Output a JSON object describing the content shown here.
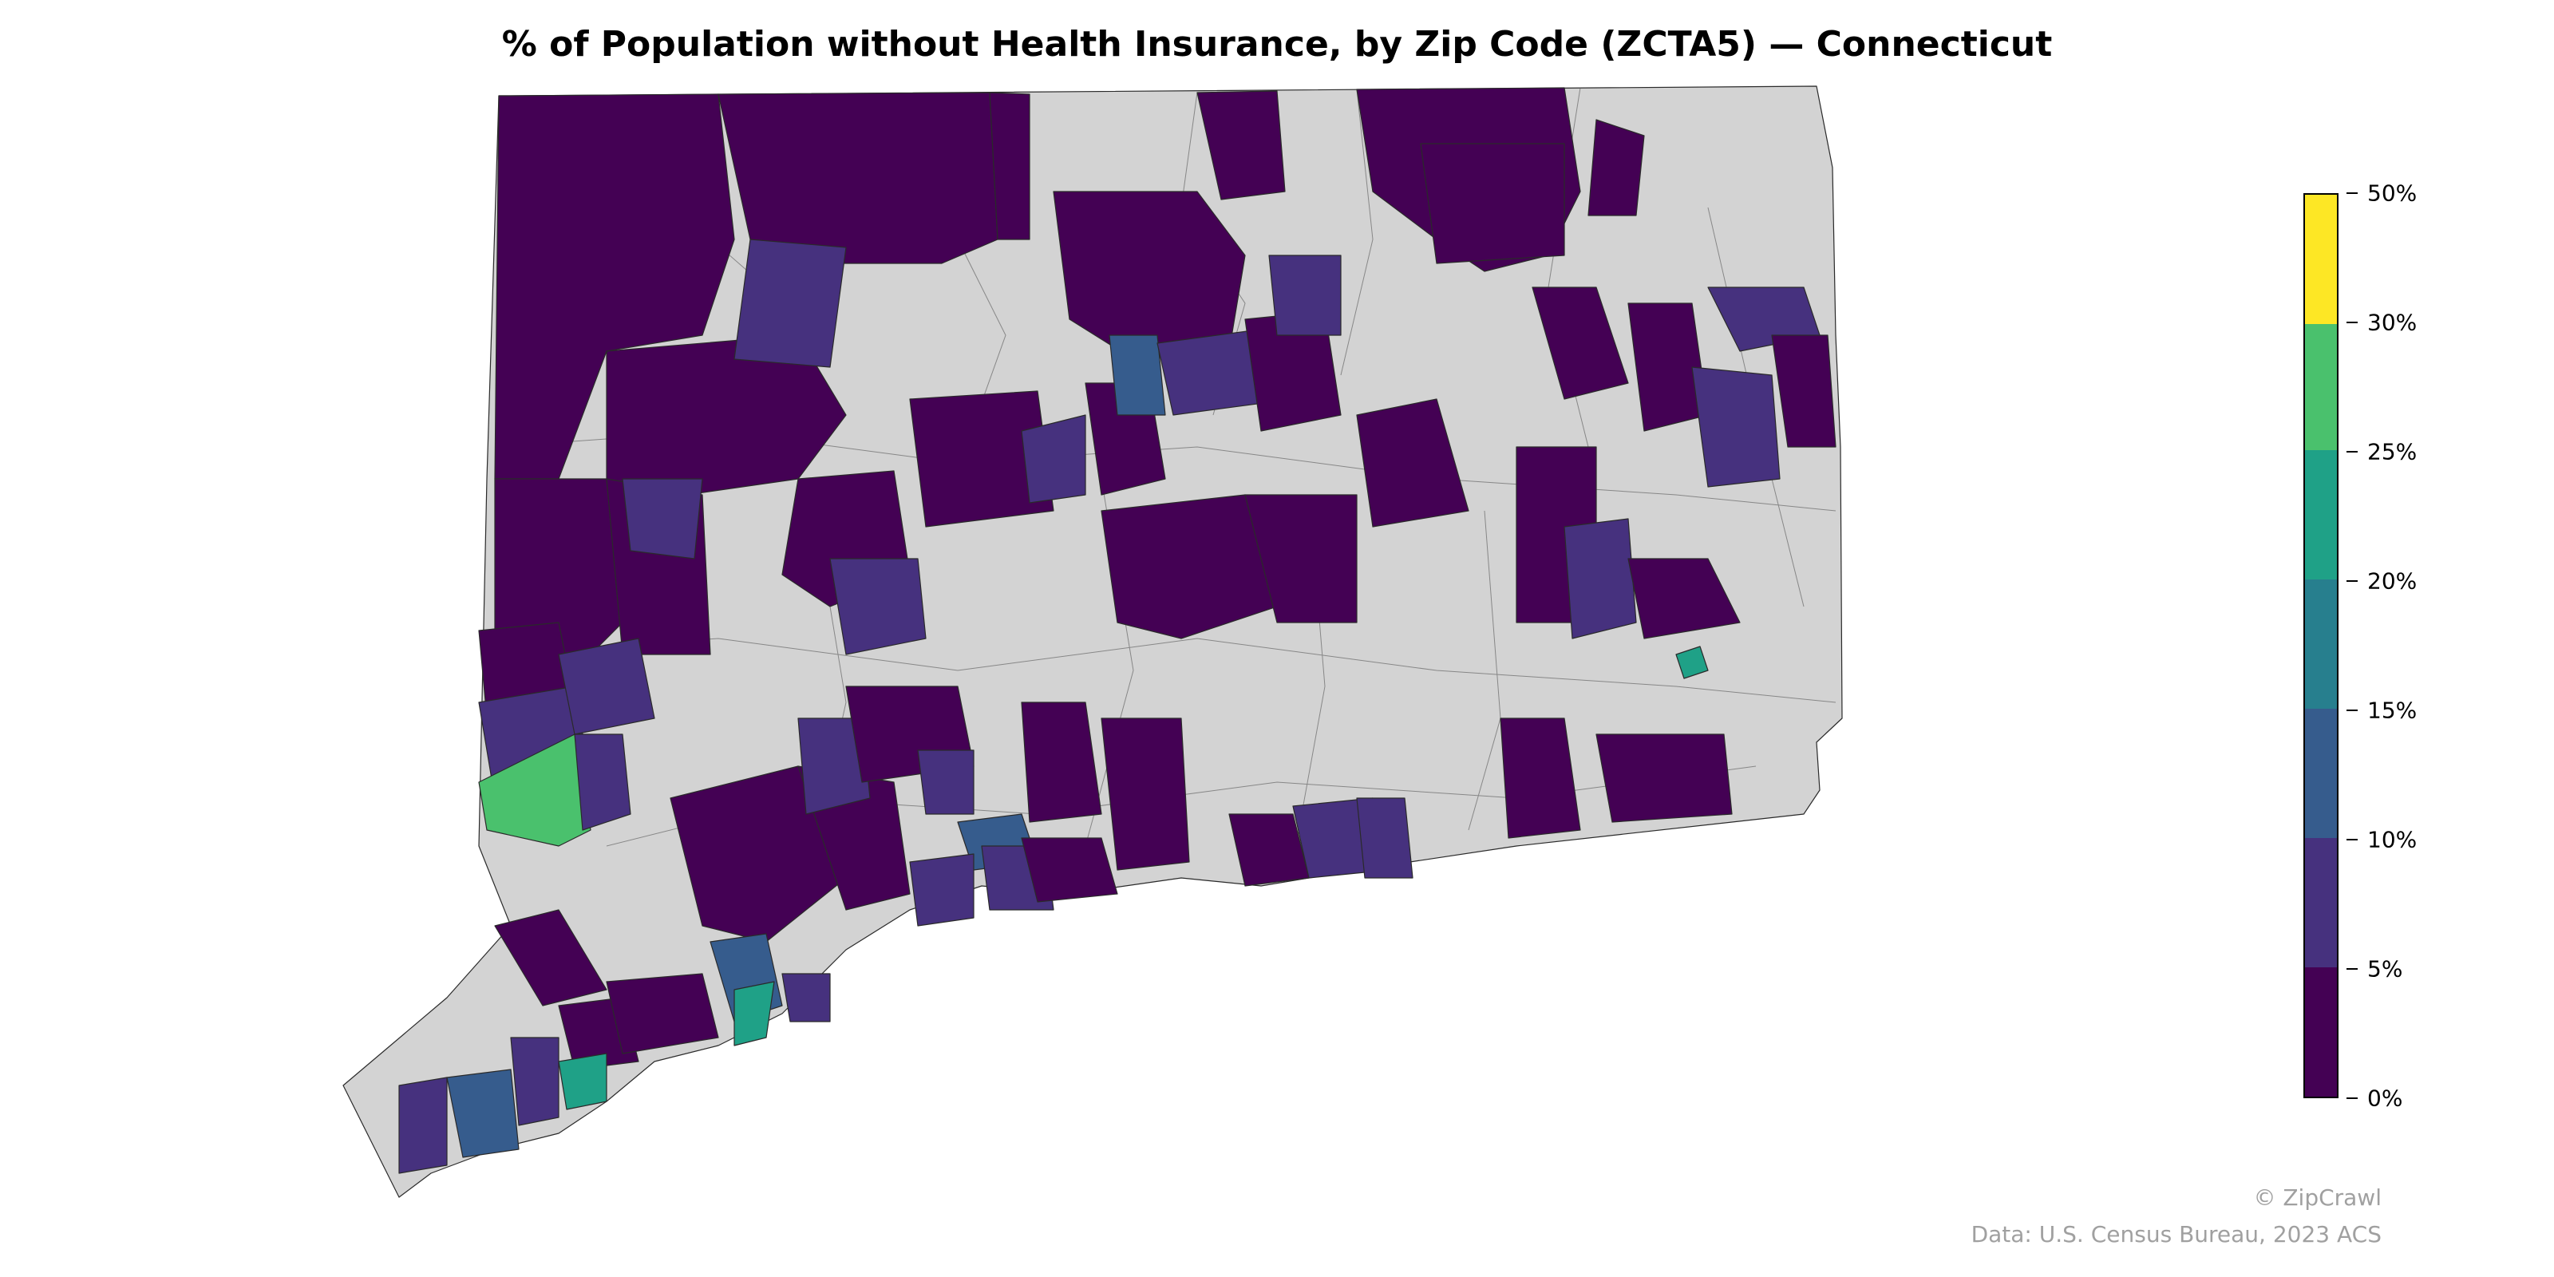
{
  "title": "% of Population without Health Insurance, by Zip Code (ZCTA5) — Connecticut",
  "legend": {
    "bins": [
      {
        "label": "0%",
        "from": 0,
        "to": 5,
        "color": "#440154"
      },
      {
        "label": "5%",
        "from": 5,
        "to": 10,
        "color": "#46317e"
      },
      {
        "label": "10%",
        "from": 10,
        "to": 15,
        "color": "#365c8d"
      },
      {
        "label": "15%",
        "from": 15,
        "to": 20,
        "color": "#277f8e"
      },
      {
        "label": "20%",
        "from": 20,
        "to": 25,
        "color": "#1fa187"
      },
      {
        "label": "25%",
        "from": 25,
        "to": 30,
        "color": "#4ac16d"
      },
      {
        "label": "30%",
        "from": 30,
        "to": 50,
        "color": "#a0da39"
      },
      {
        "label": "50%",
        "from": 50,
        "to": 50,
        "color": "#fde725"
      }
    ],
    "ticks": [
      "0%",
      "5%",
      "10%",
      "15%",
      "20%",
      "25%",
      "30%",
      "50%"
    ],
    "no_data_color": "#d3d3d3"
  },
  "credits": {
    "brand": "© ZipCrawl",
    "source": "Data: U.S. Census Bureau, 2023 ACS"
  }
}
